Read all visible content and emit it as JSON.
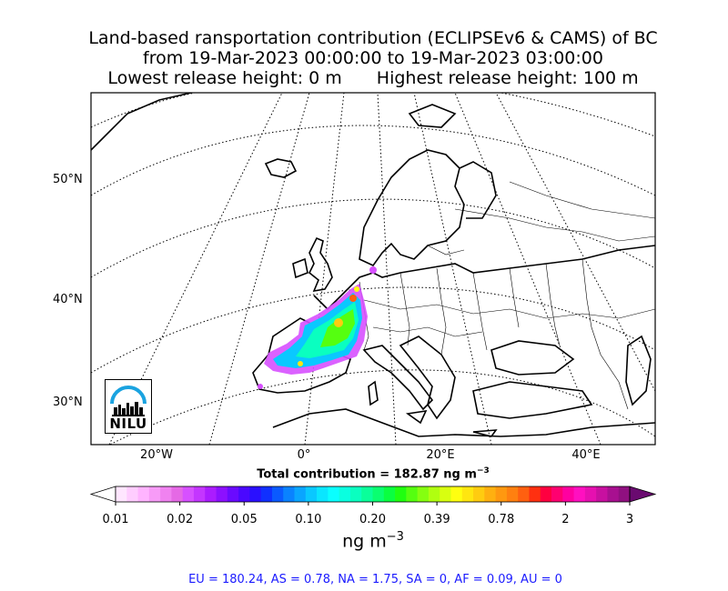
{
  "title": {
    "line1": "Land-based ransportation contribution (ECLIPSEv6 & CAMS) of BC",
    "line2": "from 19-Mar-2023 00:00:00 to 19-Mar-2023 03:00:00",
    "line3_left": "Lowest release height: 0 m",
    "line3_right": "Highest release height: 100 m"
  },
  "map": {
    "lat_labels": [
      "50°N",
      "40°N",
      "30°N"
    ],
    "lon_labels": [
      "20°W",
      "0°",
      "20°E",
      "40°E"
    ],
    "logo_text": "NILU",
    "logo_color": "#1aa3e0"
  },
  "total_contribution": "Total contribution = 182.87 ng m",
  "total_contribution_exp": "−3",
  "colorbar": {
    "tick_labels": [
      "0.01",
      "0.02",
      "0.05",
      "0.10",
      "0.20",
      "0.39",
      "0.78",
      "2",
      "3"
    ],
    "units": "ng m",
    "units_exp": "−3",
    "colors": [
      "#ffe6ff",
      "#ffcdff",
      "#ffb4ff",
      "#f79bf7",
      "#f082f0",
      "#e569e5",
      "#d750ff",
      "#c436ff",
      "#ab1cff",
      "#8c10ff",
      "#6a0aff",
      "#4a08ff",
      "#2a10ff",
      "#1030ff",
      "#0a5aff",
      "#0a82ff",
      "#0aa5ff",
      "#0ac8ff",
      "#0ae6ff",
      "#0affff",
      "#0affe0",
      "#0affc0",
      "#0aff9a",
      "#0aff70",
      "#0aff40",
      "#20ff10",
      "#55ff10",
      "#85ff10",
      "#b0ff10",
      "#d8ff10",
      "#ffff10",
      "#ffe610",
      "#ffcc10",
      "#ffb010",
      "#ff9810",
      "#ff8010",
      "#ff6010",
      "#ff3010",
      "#ff0040",
      "#ff0070",
      "#ff00a0",
      "#ff10c0",
      "#e610b0",
      "#c810a0",
      "#a81090",
      "#901080"
    ],
    "min_color": "#ffffff",
    "max_color": "#6a0a70"
  },
  "regions": "EU = 180.24,  AS = 0.78,  NA = 1.75,  SA = 0,  AF = 0.09,  AU = 0"
}
